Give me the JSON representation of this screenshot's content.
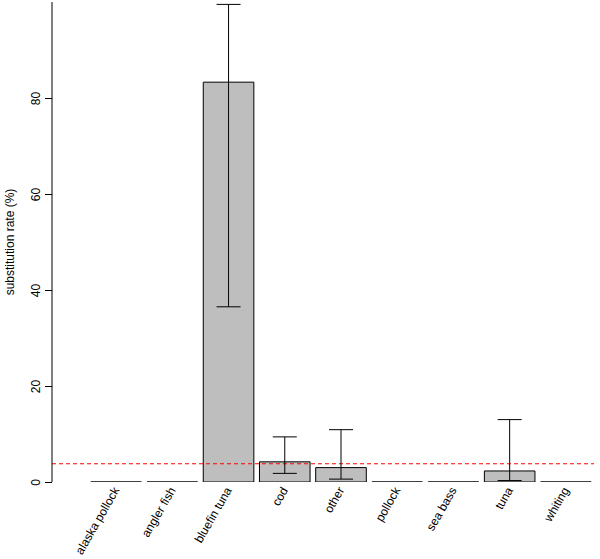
{
  "chart_data": {
    "type": "bar",
    "y_label": "substitution rate (%)",
    "categories": [
      "alaska pollock",
      "angler fish",
      "bluefin tuna",
      "cod",
      "other",
      "pollock",
      "sea bass",
      "tuna",
      "whiting"
    ],
    "values": [
      0,
      0,
      83.3,
      4.2,
      3.0,
      0,
      0,
      2.3,
      0
    ],
    "error_low": [
      null,
      null,
      36.5,
      1.8,
      0.6,
      null,
      null,
      0.3,
      null
    ],
    "error_high": [
      null,
      null,
      99.5,
      9.4,
      10.9,
      null,
      null,
      13.0,
      null
    ],
    "reference_line": 3.8,
    "color": "#bebebe",
    "ylim": [
      0,
      100
    ],
    "yticks": [
      0,
      20,
      40,
      60,
      80
    ],
    "grid": false
  }
}
